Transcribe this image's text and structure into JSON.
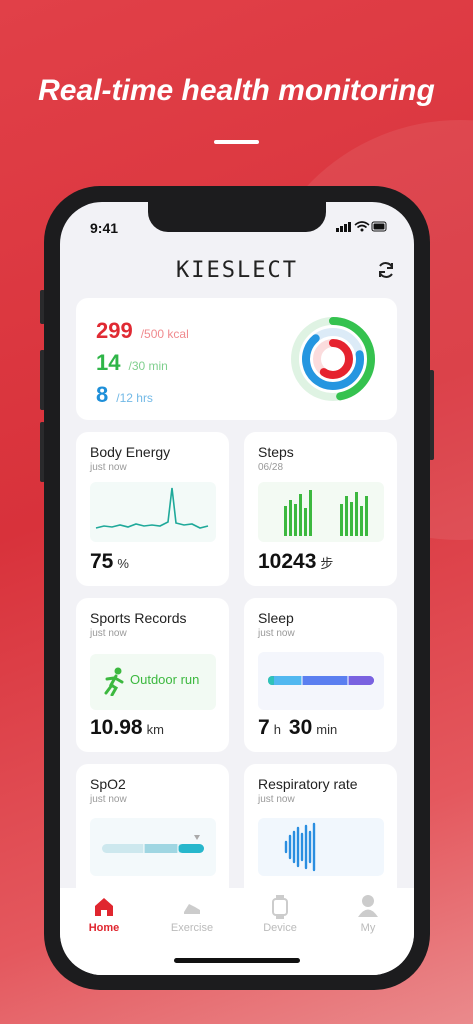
{
  "headline": "Real-time health monitoring",
  "status_bar": {
    "time": "9:41"
  },
  "header": {
    "logo": "KIESLECT"
  },
  "summary": {
    "rows": [
      {
        "value": "299",
        "target": "/500 kcal"
      },
      {
        "value": "14",
        "target": "/30 min"
      },
      {
        "value": "8",
        "target": "/12 hrs"
      }
    ]
  },
  "cards": [
    {
      "title": "Body Energy",
      "subtitle": "just now",
      "value": "75",
      "unit": "%"
    },
    {
      "title": "Steps",
      "subtitle": "06/28",
      "value": "10243",
      "unit": "步"
    },
    {
      "title": "Sports Records",
      "subtitle": "just now",
      "activity": "Outdoor run",
      "value": "10.98",
      "unit": "km"
    },
    {
      "title": "Sleep",
      "subtitle": "just now",
      "value": "7",
      "unit": "h",
      "value2": "30",
      "unit2": "min"
    },
    {
      "title": "SpO2",
      "subtitle": "just now"
    },
    {
      "title": "Respiratory rate",
      "subtitle": "just now"
    }
  ],
  "tabs": [
    "Home",
    "Exercise",
    "Device",
    "My"
  ]
}
